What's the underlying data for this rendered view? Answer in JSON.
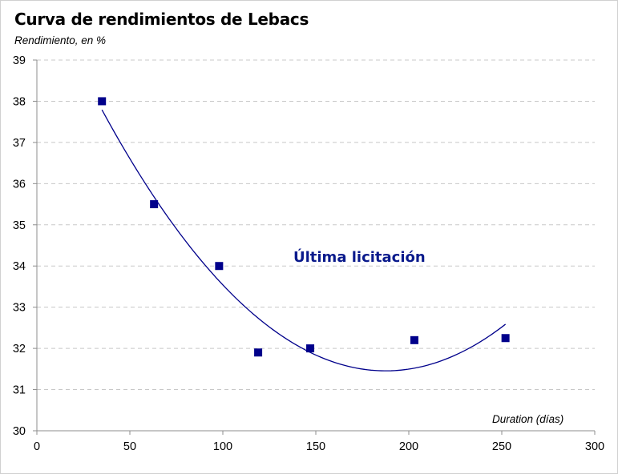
{
  "chart_data": {
    "type": "scatter",
    "title": "Curva de rendimientos de Lebacs",
    "ylabel": "Rendimiento, en %",
    "xlabel": "Duration (días)",
    "annotation": "Última licitación",
    "xlim": [
      0,
      300
    ],
    "ylim": [
      30,
      39
    ],
    "xticks": [
      0,
      50,
      100,
      150,
      200,
      250,
      300
    ],
    "yticks": [
      30,
      31,
      32,
      33,
      34,
      35,
      36,
      37,
      38,
      39
    ],
    "grid": "horizontal dashed",
    "marker_color": "#00008b",
    "trendline_color": "#00008b",
    "trendline": "polynomial order 2",
    "points": [
      {
        "x": 35,
        "y": 38.0
      },
      {
        "x": 63,
        "y": 35.5
      },
      {
        "x": 98,
        "y": 34.0
      },
      {
        "x": 119,
        "y": 31.9
      },
      {
        "x": 147,
        "y": 32.0
      },
      {
        "x": 203,
        "y": 32.2
      },
      {
        "x": 252,
        "y": 32.25
      }
    ]
  }
}
